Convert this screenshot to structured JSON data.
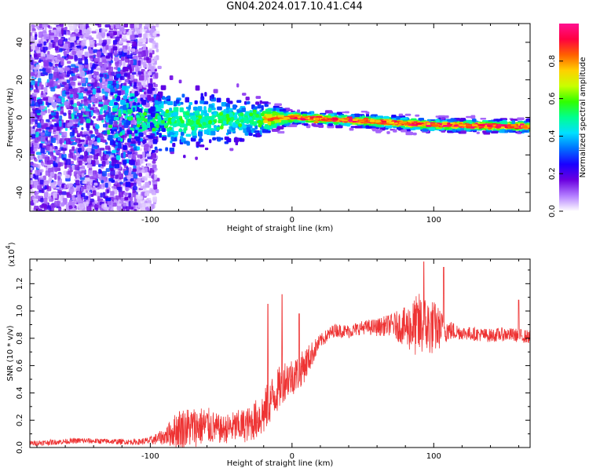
{
  "title": "GN04.2024.017.10.41.C44",
  "chart_data": [
    {
      "type": "heatmap",
      "xlabel": "Height of straight line (km)",
      "ylabel": "Frequency (Hz)",
      "xlim": [
        -185,
        168
      ],
      "ylim": [
        -50,
        50
      ],
      "xticks": [
        -100,
        0,
        100
      ],
      "yticks": [
        -40,
        -20,
        0,
        20,
        40
      ],
      "colorbar": {
        "label": "Normalized spectral amplitude",
        "range": [
          0.0,
          1.0
        ],
        "ticks": [
          0.0,
          0.2,
          0.4,
          0.6,
          0.8
        ],
        "colors": [
          "#ffffff",
          "#b27cff",
          "#6b00e0",
          "#1a00ff",
          "#0070ff",
          "#00e0ff",
          "#00ff90",
          "#30ff00",
          "#c8ff00",
          "#ffd000",
          "#ff6000",
          "#ff0040",
          "#ff1090"
        ]
      },
      "band": {
        "description_points": [
          {
            "x": -185,
            "center": 0,
            "spread": 50
          },
          {
            "x": -100,
            "center": -2,
            "spread": 10
          },
          {
            "x": -20,
            "center": -1,
            "spread": 5
          },
          {
            "x": 0,
            "center": 0,
            "spread": 2
          },
          {
            "x": 50,
            "center": -2,
            "spread": 2
          },
          {
            "x": 100,
            "center": -4,
            "spread": 2
          },
          {
            "x": 168,
            "center": -5,
            "spread": 2
          }
        ]
      }
    },
    {
      "type": "line",
      "xlabel": "Height of straight line (km)",
      "ylabel": "SNR (10 * v/v)",
      "multiplier": "(x10",
      "multiplier_exp": "4",
      "multiplier_close": ")",
      "xlim": [
        -185,
        168
      ],
      "ylim": [
        0.0,
        1.38
      ],
      "xticks": [
        -100,
        0,
        100
      ],
      "yticks": [
        0.0,
        0.2,
        0.4,
        0.6,
        0.8,
        1.0,
        1.2
      ],
      "series": [
        {
          "color": "#ee3333",
          "trend": {
            "x": [
              -185,
              -150,
              -110,
              -100,
              -90,
              -80,
              -70,
              -60,
              -50,
              -40,
              -30,
              -20,
              -15,
              -10,
              -5,
              0,
              5,
              10,
              20,
              30,
              40,
              50,
              60,
              70,
              80,
              90,
              100,
              110,
              120,
              130,
              140,
              150,
              160,
              168
            ],
            "y": [
              0.03,
              0.05,
              0.04,
              0.05,
              0.08,
              0.14,
              0.15,
              0.16,
              0.13,
              0.15,
              0.17,
              0.25,
              0.35,
              0.42,
              0.5,
              0.52,
              0.55,
              0.62,
              0.78,
              0.86,
              0.85,
              0.88,
              0.88,
              0.9,
              0.88,
              0.89,
              0.88,
              0.86,
              0.84,
              0.83,
              0.82,
              0.83,
              0.82,
              0.81
            ]
          },
          "noise": {
            "x": [
              -185,
              -110,
              -100,
              -90,
              -80,
              -70,
              -60,
              -50,
              -40,
              -30,
              -20,
              -10,
              0,
              10,
              20,
              50,
              70,
              80,
              90,
              100,
              110,
              120,
              168
            ],
            "amp": [
              0.02,
              0.02,
              0.03,
              0.06,
              0.15,
              0.15,
              0.14,
              0.1,
              0.12,
              0.13,
              0.17,
              0.16,
              0.14,
              0.12,
              0.05,
              0.05,
              0.08,
              0.15,
              0.25,
              0.2,
              0.08,
              0.05,
              0.05
            ]
          },
          "peaks": [
            {
              "x": -17,
              "y": 1.05
            },
            {
              "x": -7,
              "y": 1.12
            },
            {
              "x": 5,
              "y": 0.98
            },
            {
              "x": 93,
              "y": 1.36
            },
            {
              "x": 107,
              "y": 1.32
            },
            {
              "x": 160,
              "y": 1.08
            }
          ]
        }
      ]
    }
  ]
}
